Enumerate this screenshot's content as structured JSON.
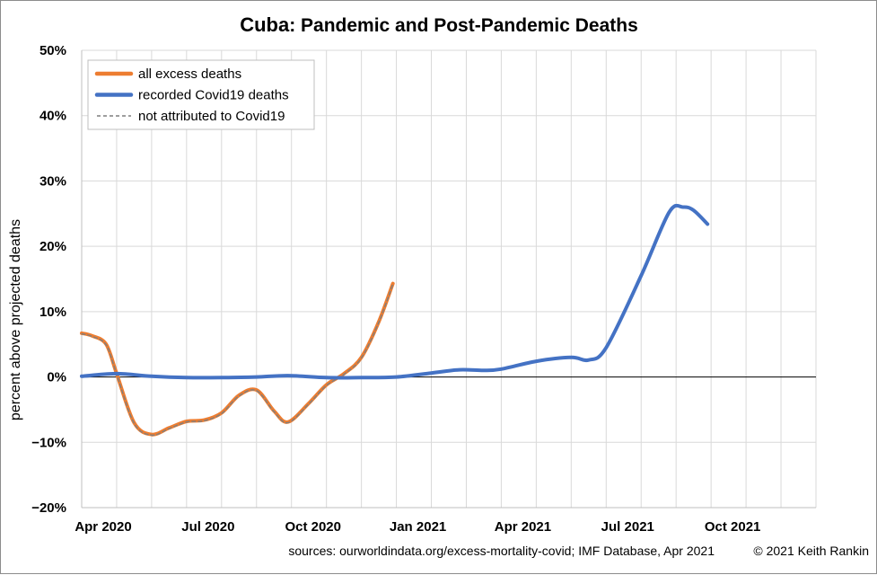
{
  "chart_data": {
    "type": "line",
    "title_bold": "Cuba",
    "title_rest": ": Pandemic and Post-Pandemic Deaths",
    "ylabel": "percent above projected deaths",
    "xlabel": "",
    "ylim": [
      -20,
      50
    ],
    "yticks": [
      -20,
      -10,
      0,
      10,
      20,
      30,
      40,
      50
    ],
    "ytick_labels": [
      "−20%",
      "−10%",
      "0%",
      "10%",
      "20%",
      "30%",
      "40%",
      "50%"
    ],
    "x_unit": "months since Apr 2020",
    "xlim": [
      0,
      21
    ],
    "xticks": [
      {
        "x": 0,
        "label": "Apr 2020"
      },
      {
        "x": 3,
        "label": "Jul 2020"
      },
      {
        "x": 6,
        "label": "Oct 2020"
      },
      {
        "x": 9,
        "label": "Jan 2021"
      },
      {
        "x": 12,
        "label": "Apr 2021"
      },
      {
        "x": 15,
        "label": "Jul 2021"
      },
      {
        "x": 18,
        "label": "Oct 2021"
      }
    ],
    "grid": true,
    "legend_position": "top-left",
    "series": [
      {
        "name": "all excess deaths",
        "color": "#ed7d31",
        "style": "solid",
        "points": [
          [
            0,
            6.7
          ],
          [
            0.3,
            6.3
          ],
          [
            0.7,
            5.0
          ],
          [
            1.0,
            0.5
          ],
          [
            1.5,
            -7.0
          ],
          [
            2.0,
            -8.8
          ],
          [
            2.5,
            -7.8
          ],
          [
            3.0,
            -6.8
          ],
          [
            3.5,
            -6.6
          ],
          [
            4.0,
            -5.5
          ],
          [
            4.5,
            -2.8
          ],
          [
            5.0,
            -2.0
          ],
          [
            5.5,
            -5.2
          ],
          [
            5.9,
            -6.9
          ],
          [
            6.5,
            -4.0
          ],
          [
            7.0,
            -1.2
          ],
          [
            7.5,
            0.5
          ],
          [
            8.0,
            3.0
          ],
          [
            8.5,
            8.5
          ],
          [
            8.9,
            14.3
          ]
        ]
      },
      {
        "name": "recorded Covid19 deaths",
        "color": "#4472c4",
        "style": "solid",
        "points": [
          [
            0,
            0.1
          ],
          [
            1.0,
            0.5
          ],
          [
            2.0,
            0.1
          ],
          [
            3.0,
            -0.1
          ],
          [
            4.0,
            -0.1
          ],
          [
            5.0,
            0.0
          ],
          [
            5.9,
            0.2
          ],
          [
            7.0,
            -0.1
          ],
          [
            8.0,
            -0.1
          ],
          [
            9.0,
            0.0
          ],
          [
            10.0,
            0.6
          ],
          [
            10.8,
            1.1
          ],
          [
            11.5,
            1.0
          ],
          [
            12.0,
            1.2
          ],
          [
            13.0,
            2.4
          ],
          [
            14.0,
            3.0
          ],
          [
            14.5,
            2.6
          ],
          [
            15.0,
            4.5
          ],
          [
            16.0,
            15.5
          ],
          [
            16.8,
            25.2
          ],
          [
            17.2,
            26.0
          ],
          [
            17.5,
            25.5
          ],
          [
            17.9,
            23.4
          ]
        ]
      },
      {
        "name": "not attributed to Covid19",
        "color": "#7f7f7f",
        "style": "dashed",
        "points": [
          [
            0,
            6.6
          ],
          [
            0.3,
            6.2
          ],
          [
            0.7,
            4.9
          ],
          [
            1.0,
            0.4
          ],
          [
            1.5,
            -7.1
          ],
          [
            2.0,
            -8.9
          ],
          [
            2.5,
            -7.9
          ],
          [
            3.0,
            -6.9
          ],
          [
            3.5,
            -6.7
          ],
          [
            4.0,
            -5.6
          ],
          [
            4.5,
            -2.9
          ],
          [
            5.0,
            -2.1
          ],
          [
            5.5,
            -5.3
          ],
          [
            5.9,
            -7.0
          ],
          [
            6.5,
            -4.1
          ],
          [
            7.0,
            -1.3
          ],
          [
            7.5,
            0.4
          ],
          [
            8.0,
            2.9
          ],
          [
            8.5,
            8.4
          ],
          [
            8.9,
            14.2
          ]
        ]
      }
    ],
    "footnote_sources": "sources:  ourworldindata.org/excess-mortality-covid;  IMF Database, Apr 2021",
    "footnote_copyright": "© 2021 Keith Rankin"
  }
}
